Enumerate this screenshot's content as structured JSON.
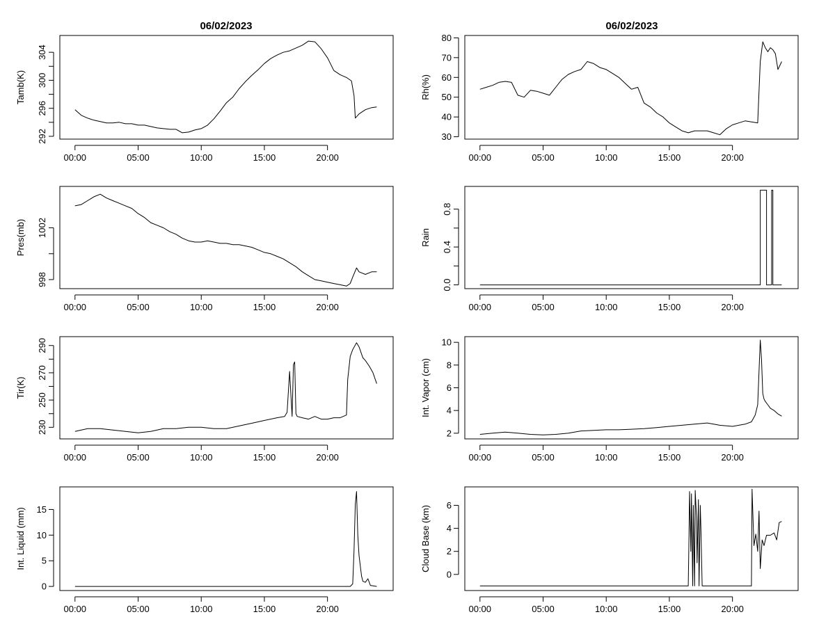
{
  "figure": {
    "titles": [
      "06/02/2023",
      "06/02/2023"
    ]
  },
  "chart_data": [
    {
      "type": "line",
      "title": "06/02/2023",
      "xlabel": "",
      "ylabel": "Tamb(K)",
      "xlim": [
        -1.2,
        25.2
      ],
      "ylim": [
        291.6,
        306.4
      ],
      "xticks": [
        0,
        5,
        10,
        15,
        20
      ],
      "xtick_labels": [
        "00:00",
        "05:00",
        "10:00",
        "15:00",
        "20:00"
      ],
      "yticks": [
        292,
        296,
        300,
        304
      ],
      "ytick_labels": [
        "292",
        "296",
        "300",
        "304"
      ],
      "ytick_rotated": true,
      "minor_yticks": [
        294,
        298,
        302
      ],
      "x": [
        0,
        0.5,
        1,
        1.5,
        2,
        2.5,
        3,
        3.5,
        4,
        4.5,
        5,
        5.5,
        6,
        6.5,
        7,
        7.5,
        8,
        8.5,
        9,
        9.5,
        10,
        10.5,
        11,
        11.5,
        12,
        12.5,
        13,
        13.5,
        14,
        14.5,
        15,
        15.5,
        16,
        16.5,
        17,
        17.5,
        18,
        18.5,
        19,
        19.5,
        20,
        20.5,
        21,
        21.5,
        21.9,
        22.1,
        22.2,
        22.3,
        22.5,
        23,
        23.5,
        23.9
      ],
      "values": [
        295.8,
        295.0,
        294.6,
        294.3,
        294.1,
        293.9,
        293.9,
        294.0,
        293.8,
        293.8,
        293.6,
        293.6,
        293.4,
        293.2,
        293.1,
        293.0,
        293.0,
        292.5,
        292.6,
        292.9,
        293.1,
        293.6,
        294.5,
        295.6,
        296.8,
        297.6,
        298.8,
        299.8,
        300.7,
        301.5,
        302.4,
        303.1,
        303.6,
        304.0,
        304.2,
        304.6,
        305.0,
        305.6,
        305.5,
        304.5,
        303.2,
        301.4,
        300.8,
        300.4,
        299.9,
        297.8,
        294.6,
        294.8,
        295.2,
        295.8,
        296.1,
        296.2
      ]
    },
    {
      "type": "line",
      "title": "06/02/2023",
      "xlabel": "",
      "ylabel": "Rh(%)",
      "xlim": [
        -1.2,
        25.2
      ],
      "ylim": [
        28.8,
        81.2
      ],
      "xticks": [
        0,
        5,
        10,
        15,
        20
      ],
      "xtick_labels": [
        "00:00",
        "05:00",
        "10:00",
        "15:00",
        "20:00"
      ],
      "yticks": [
        30,
        40,
        50,
        60,
        70,
        80
      ],
      "ytick_labels": [
        "30",
        "40",
        "50",
        "60",
        "70",
        "80"
      ],
      "ytick_rotated": false,
      "minor_yticks": [],
      "x": [
        0,
        0.5,
        1,
        1.5,
        2,
        2.5,
        3,
        3.5,
        4,
        4.5,
        5,
        5.5,
        6,
        6.5,
        7,
        7.5,
        8,
        8.5,
        9,
        9.5,
        10,
        10.5,
        11,
        11.5,
        12,
        12.5,
        13,
        13.5,
        14,
        14.5,
        15,
        15.5,
        16,
        16.5,
        17,
        17.5,
        18,
        18.5,
        19,
        19.5,
        20,
        20.5,
        21,
        21.5,
        22,
        22.2,
        22.4,
        22.6,
        22.8,
        23,
        23.2,
        23.4,
        23.6,
        23.9
      ],
      "values": [
        54,
        55,
        56,
        57.5,
        58,
        57.5,
        51,
        50,
        53.5,
        53,
        52,
        51,
        55,
        59,
        61.5,
        63,
        64,
        68,
        67,
        65,
        64,
        62,
        60,
        57,
        54,
        55,
        47,
        45,
        42,
        40,
        37,
        35,
        33,
        32,
        33,
        33,
        33,
        32,
        31,
        34,
        36,
        37,
        38,
        37.5,
        37,
        68,
        78,
        75,
        73,
        75,
        74,
        72,
        64,
        68
      ]
    },
    {
      "type": "line",
      "title": "",
      "xlabel": "",
      "ylabel": "Pres(mb)",
      "xlim": [
        -1.2,
        25.2
      ],
      "ylim": [
        997.3,
        1005.2
      ],
      "xticks": [
        0,
        5,
        10,
        15,
        20
      ],
      "xtick_labels": [
        "00:00",
        "05:00",
        "10:00",
        "15:00",
        "20:00"
      ],
      "yticks": [
        998,
        1002
      ],
      "ytick_labels": [
        "998",
        "1002"
      ],
      "ytick_rotated": true,
      "minor_yticks": [
        1000
      ],
      "x": [
        0,
        0.5,
        1,
        1.5,
        2,
        2.5,
        3,
        3.5,
        4,
        4.5,
        5,
        5.5,
        6,
        6.5,
        7,
        7.5,
        8,
        8.5,
        9,
        9.5,
        10,
        10.5,
        11,
        11.5,
        12,
        12.5,
        13,
        13.5,
        14,
        14.5,
        15,
        15.5,
        16,
        16.5,
        17,
        17.5,
        18,
        18.5,
        19,
        19.5,
        20,
        20.5,
        21,
        21.5,
        21.8,
        22,
        22.3,
        22.5,
        23,
        23.5,
        23.9
      ],
      "values": [
        1003.7,
        1003.8,
        1004.1,
        1004.4,
        1004.6,
        1004.3,
        1004.1,
        1003.9,
        1003.7,
        1003.5,
        1003.1,
        1002.8,
        1002.4,
        1002.2,
        1002.0,
        1001.7,
        1001.5,
        1001.2,
        1001.0,
        1000.9,
        1000.9,
        1001.0,
        1000.9,
        1000.8,
        1000.8,
        1000.7,
        1000.7,
        1000.6,
        1000.5,
        1000.3,
        1000.1,
        1000.0,
        999.8,
        999.6,
        999.3,
        999.0,
        998.6,
        998.3,
        998.0,
        997.9,
        997.8,
        997.7,
        997.6,
        997.5,
        997.7,
        998.2,
        998.9,
        998.6,
        998.4,
        998.6,
        998.6
      ]
    },
    {
      "type": "line",
      "title": "",
      "xlabel": "",
      "ylabel": "Rain",
      "xlim": [
        -1.2,
        25.2
      ],
      "ylim": [
        -0.04,
        1.04
      ],
      "xticks": [
        0,
        5,
        10,
        15,
        20
      ],
      "xtick_labels": [
        "00:00",
        "05:00",
        "10:00",
        "15:00",
        "20:00"
      ],
      "yticks": [
        0,
        0.4,
        0.8
      ],
      "ytick_labels": [
        "0.0",
        "0.4",
        "0.8"
      ],
      "ytick_rotated": true,
      "minor_yticks": [
        0.2,
        0.6
      ],
      "x": [
        0,
        22.2,
        22.2,
        22.7,
        22.7,
        23.1,
        23.1,
        23.2,
        23.2,
        23.9
      ],
      "values": [
        0,
        0,
        1,
        1,
        0,
        0,
        1,
        1,
        0,
        0
      ]
    },
    {
      "type": "line",
      "title": "",
      "xlabel": "",
      "ylabel": "Tir(K)",
      "xlim": [
        -1.2,
        25.2
      ],
      "ylim": [
        221.5,
        296.5
      ],
      "xticks": [
        0,
        5,
        10,
        15,
        20
      ],
      "xtick_labels": [
        "00:00",
        "05:00",
        "10:00",
        "15:00",
        "20:00"
      ],
      "yticks": [
        230,
        250,
        270,
        290
      ],
      "ytick_labels": [
        "230",
        "250",
        "270",
        "290"
      ],
      "ytick_rotated": true,
      "minor_yticks": [
        240,
        260,
        280
      ],
      "x": [
        0,
        1,
        2,
        3,
        4,
        5,
        6,
        7,
        8,
        9,
        10,
        11,
        12,
        13,
        14,
        15,
        16,
        16.6,
        16.8,
        17.0,
        17.2,
        17.3,
        17.4,
        17.5,
        17.6,
        18,
        18.5,
        19,
        19.5,
        20,
        20.5,
        21,
        21.5,
        21.6,
        21.8,
        22,
        22.3,
        22.5,
        22.8,
        23,
        23.3,
        23.6,
        23.9
      ],
      "values": [
        227,
        229,
        229,
        228,
        227,
        226,
        227,
        229,
        229,
        230,
        230,
        229,
        229,
        231,
        233,
        235,
        237,
        238,
        241,
        271,
        238,
        276,
        278,
        240,
        238,
        237,
        236,
        238,
        236,
        236,
        237,
        237,
        239,
        265,
        282,
        287,
        292,
        289,
        281,
        279,
        275,
        270,
        262
      ]
    },
    {
      "type": "line",
      "title": "",
      "xlabel": "",
      "ylabel": "Int. Vapor (cm)",
      "xlim": [
        -1.2,
        25.2
      ],
      "ylim": [
        1.5,
        10.5
      ],
      "xticks": [
        0,
        5,
        10,
        15,
        20
      ],
      "xtick_labels": [
        "00:00",
        "05:00",
        "10:00",
        "15:00",
        "20:00"
      ],
      "yticks": [
        2,
        4,
        6,
        8,
        10
      ],
      "ytick_labels": [
        "2",
        "4",
        "6",
        "8",
        "10"
      ],
      "ytick_rotated": false,
      "minor_yticks": [],
      "x": [
        0,
        1,
        2,
        3,
        4,
        5,
        6,
        7,
        8,
        9,
        10,
        11,
        12,
        13,
        14,
        15,
        16,
        17,
        18,
        19,
        20,
        21,
        21.5,
        21.8,
        22,
        22.2,
        22.3,
        22.4,
        22.5,
        22.6,
        22.8,
        23,
        23.3,
        23.6,
        23.9
      ],
      "values": [
        1.9,
        2.0,
        2.1,
        2.0,
        1.9,
        1.85,
        1.9,
        2.0,
        2.2,
        2.25,
        2.3,
        2.3,
        2.35,
        2.4,
        2.5,
        2.6,
        2.7,
        2.8,
        2.9,
        2.7,
        2.6,
        2.8,
        3.0,
        3.6,
        4.5,
        10.2,
        8.5,
        5.5,
        5.0,
        4.8,
        4.5,
        4.2,
        4.0,
        3.7,
        3.5
      ]
    },
    {
      "type": "line",
      "title": "",
      "xlabel": "",
      "ylabel": "Int. Liquid (mm)",
      "xlim": [
        -1.2,
        25.2
      ],
      "ylim": [
        -0.8,
        19.4
      ],
      "xticks": [
        0,
        5,
        10,
        15,
        20
      ],
      "xtick_labels": [
        "00:00",
        "05:00",
        "10:00",
        "15:00",
        "20:00"
      ],
      "yticks": [
        0,
        5,
        10,
        15
      ],
      "ytick_labels": [
        "0",
        "5",
        "10",
        "15"
      ],
      "ytick_rotated": false,
      "minor_yticks": [],
      "x": [
        0,
        21.8,
        22.0,
        22.1,
        22.2,
        22.3,
        22.4,
        22.5,
        22.7,
        22.8,
        23.0,
        23.2,
        23.4,
        23.9
      ],
      "values": [
        0,
        0,
        0.5,
        7,
        16,
        18.5,
        10,
        6,
        2,
        1,
        0.8,
        1.5,
        0.2,
        0
      ]
    },
    {
      "type": "line",
      "title": "",
      "xlabel": "",
      "ylabel": "Cloud Base (km)",
      "xlim": [
        -1.2,
        25.2
      ],
      "ylim": [
        -1.4,
        7.6
      ],
      "xticks": [
        0,
        5,
        10,
        15,
        20
      ],
      "xtick_labels": [
        "00:00",
        "05:00",
        "10:00",
        "15:00",
        "20:00"
      ],
      "yticks": [
        0,
        2,
        4,
        6
      ],
      "ytick_labels": [
        "0",
        "2",
        "4",
        "6"
      ],
      "ytick_rotated": false,
      "minor_yticks": [],
      "x": [
        0,
        16.5,
        16.55,
        16.6,
        16.7,
        16.75,
        16.85,
        16.9,
        17.0,
        17.05,
        17.15,
        17.2,
        17.3,
        17.35,
        17.45,
        17.5,
        17.6,
        17.7,
        21.5,
        21.55,
        21.7,
        21.85,
        22.0,
        22.1,
        22.2,
        22.35,
        22.5,
        22.7,
        23.0,
        23.3,
        23.5,
        23.7,
        23.9
      ],
      "values": [
        -1,
        -1,
        3,
        7.2,
        2,
        7,
        -1,
        6,
        -1,
        7.3,
        5,
        1,
        6.5,
        -1,
        6,
        4,
        -1,
        -1,
        -1,
        7.4,
        2.5,
        3.5,
        2,
        5.5,
        0.5,
        3,
        2.5,
        3.4,
        3.4,
        3.6,
        3,
        4.5,
        4.6
      ]
    }
  ]
}
